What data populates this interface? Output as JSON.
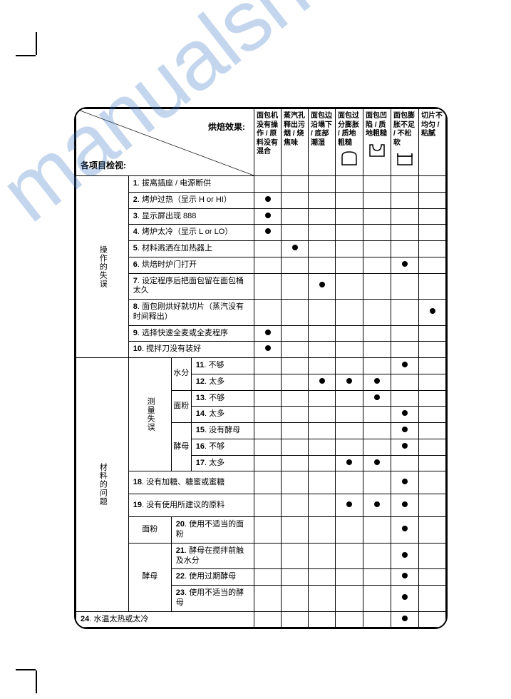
{
  "header": {
    "topLabel": "烘焙效果:",
    "bottomLabel": "各项目检视:"
  },
  "columns": [
    "面包机没有操作 / 原料没有混合",
    "蒸汽孔释出污烟 / 烧焦味",
    "面包边沿塌下 / 底部潮湿",
    "面包过分膨胀 / 质地粗糙",
    "面包凹陷 / 质地粗糙",
    "面包膨胀不足 / 不松软",
    "切片不均匀 / 粘腻"
  ],
  "group1": {
    "title": "操作的失误",
    "rows": [
      {
        "n": "1",
        "label": "拔离插座 / 电源断供",
        "dots": [
          0,
          0,
          0,
          0,
          0,
          0,
          0
        ]
      },
      {
        "n": "2",
        "label": "烤炉过热（显示 H or HI）",
        "dots": [
          1,
          0,
          0,
          0,
          0,
          0,
          0
        ]
      },
      {
        "n": "3",
        "label": "显示屏出现 888",
        "dots": [
          1,
          0,
          0,
          0,
          0,
          0,
          0
        ]
      },
      {
        "n": "4",
        "label": "烤炉太冷（显示 L or LO）",
        "dots": [
          1,
          0,
          0,
          0,
          0,
          0,
          0
        ]
      },
      {
        "n": "5",
        "label": "材料溅洒在加热器上",
        "dots": [
          0,
          1,
          0,
          0,
          0,
          0,
          0
        ]
      },
      {
        "n": "6",
        "label": "烘焙时炉门打开",
        "dots": [
          0,
          0,
          0,
          0,
          0,
          1,
          0
        ]
      },
      {
        "n": "7",
        "label": "设定程序后把面包留在面包桶太久",
        "dots": [
          0,
          0,
          1,
          0,
          0,
          0,
          0
        ]
      },
      {
        "n": "8",
        "label": "面包刚烘好就切片（蒸汽没有时间释出）",
        "dots": [
          0,
          0,
          0,
          0,
          0,
          0,
          1
        ]
      },
      {
        "n": "9",
        "label": "选择快速全麦或全麦程序",
        "dots": [
          1,
          0,
          0,
          0,
          0,
          0,
          0
        ]
      },
      {
        "n": "10",
        "label": "搅拌刀没有装好",
        "dots": [
          1,
          0,
          0,
          0,
          0,
          0,
          0
        ]
      }
    ]
  },
  "group2": {
    "title": "材料的问题",
    "subTitle": "测量失误",
    "subRows": {
      "water": {
        "label": "水分",
        "items": [
          {
            "n": "11",
            "label": "不够",
            "dots": [
              0,
              0,
              0,
              0,
              0,
              1,
              0
            ]
          },
          {
            "n": "12",
            "label": "太多",
            "dots": [
              0,
              0,
              1,
              1,
              1,
              0,
              0
            ]
          }
        ]
      },
      "flour": {
        "label": "面粉",
        "items": [
          {
            "n": "13",
            "label": "不够",
            "dots": [
              0,
              0,
              0,
              0,
              1,
              0,
              0
            ]
          },
          {
            "n": "14",
            "label": "太多",
            "dots": [
              0,
              0,
              0,
              0,
              0,
              1,
              0
            ]
          }
        ]
      },
      "yeast": {
        "label": "酵母",
        "items": [
          {
            "n": "15",
            "label": "没有酵母",
            "dots": [
              0,
              0,
              0,
              0,
              0,
              1,
              0
            ]
          },
          {
            "n": "16",
            "label": "不够",
            "dots": [
              0,
              0,
              0,
              0,
              0,
              1,
              0
            ]
          },
          {
            "n": "17",
            "label": "太多",
            "dots": [
              0,
              0,
              0,
              1,
              1,
              0,
              0
            ]
          }
        ]
      }
    },
    "plainRows": [
      {
        "n": "18",
        "label": "没有加糖、糖蜜或蜜糖",
        "dots": [
          0,
          0,
          0,
          0,
          0,
          1,
          0
        ]
      },
      {
        "n": "19",
        "label": "没有使用所建议的原料",
        "dots": [
          0,
          0,
          0,
          1,
          1,
          1,
          0
        ]
      }
    ],
    "flour2": {
      "label": "面粉",
      "items": [
        {
          "n": "20",
          "label": "使用不适当的面粉",
          "dots": [
            0,
            0,
            0,
            0,
            0,
            1,
            0
          ]
        }
      ]
    },
    "yeast2": {
      "label": "酵母",
      "items": [
        {
          "n": "21",
          "label": "酵母在搅拌前触及水分",
          "dots": [
            0,
            0,
            0,
            0,
            0,
            1,
            0
          ]
        },
        {
          "n": "22",
          "label": "使用过期酵母",
          "dots": [
            0,
            0,
            0,
            0,
            0,
            1,
            0
          ]
        },
        {
          "n": "23",
          "label": "使用不适当的酵母",
          "dots": [
            0,
            0,
            0,
            0,
            0,
            1,
            0
          ]
        }
      ]
    }
  },
  "lastRow": {
    "n": "24",
    "label": "水温太热或太冷",
    "dots": [
      0,
      0,
      0,
      0,
      0,
      1,
      0
    ]
  },
  "colors": {
    "text": "#000",
    "border": "#000",
    "dot": "#000",
    "watermark": "rgba(56,120,200,0.3)"
  }
}
